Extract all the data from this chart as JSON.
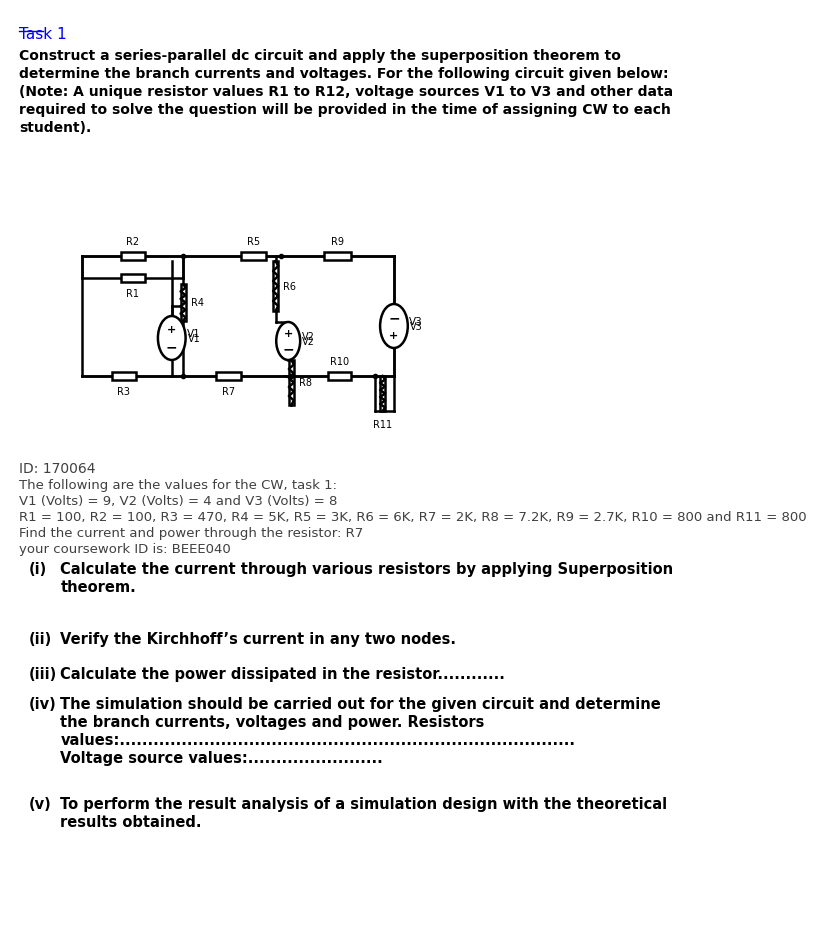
{
  "title": "Task 1",
  "intro_text": "Construct a series-parallel dc circuit and apply the superposition theorem to\ndetermine the branch currents and voltages. For the following circuit given below:\n(Note: A unique resistor values R1 to R12, voltage sources V1 to V3 and other data\nrequired to solve the question will be provided in the time of assigning CW to each\nstudent).",
  "id_line": "ID: 170064",
  "values_intro": "The following are the values for the CW, task 1:",
  "values_line1": "V1 (Volts) = 9, V2 (Volts) = 4 and V3 (Volts) = 8",
  "values_line2": "R1 = 100, R2 = 100, R3 = 470, R4 = 5K, R5 = 3K, R6 = 6K, R7 = 2K, R8 = 7.2K, R9 = 2.7K, R10 = 800 and R11 = 800",
  "values_line3": "Find the current and power through the resistor: R7",
  "values_line4": "your coursework ID is: BEEE040",
  "tasks": [
    {
      "num": "(i)",
      "text": "Calculate the current through various resistors by applying Superposition\ntheorem.",
      "bold": true
    },
    {
      "num": "(ii)",
      "text": "Verify the Kirchhoff’s current in any two nodes.",
      "bold": true
    },
    {
      "num": "(iii)",
      "text": "Calculate the power dissipated in the resistor............",
      "bold": true
    },
    {
      "num": "(iv)",
      "text": "The simulation should be carried out for the given circuit and determine\nthe branch currents, voltages and power. Resistors\nvalues:.................................................................................\nVoltage source values:........................",
      "bold": true
    },
    {
      "num": "(v)",
      "text": "To perform the result analysis of a simulation design with the theoretical\nresults obtained.",
      "bold": true
    }
  ],
  "bg_color": "#ffffff",
  "text_color": "#000000",
  "title_color": "#0000ff",
  "normal_text_color": "#404040"
}
